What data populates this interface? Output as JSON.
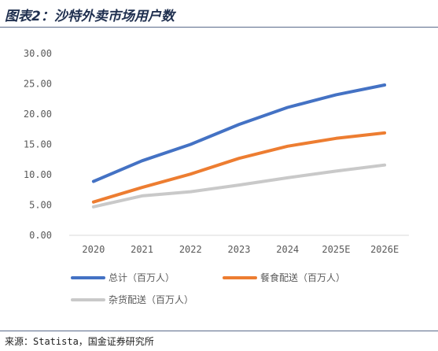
{
  "title": "图表2：沙特外卖市场用户数",
  "source": "来源：Statista，国金证券研究所",
  "chart_data": {
    "type": "line",
    "title": "",
    "xlabel": "",
    "ylabel": "",
    "categories": [
      "2020",
      "2021",
      "2022",
      "2023",
      "2024",
      "2025E",
      "2026E"
    ],
    "ylim": [
      0,
      30
    ],
    "y_ticks": [
      "0.00",
      "5.00",
      "10.00",
      "15.00",
      "20.00",
      "25.00",
      "30.00"
    ],
    "grid": false,
    "legend_position": "bottom",
    "series": [
      {
        "name": "总计（百万人）",
        "color": "#4472c4",
        "values": [
          8.9,
          12.3,
          15.0,
          18.3,
          21.1,
          23.2,
          24.8
        ]
      },
      {
        "name": "餐食配送（百万人）",
        "color": "#ed7d31",
        "values": [
          5.5,
          7.9,
          10.1,
          12.7,
          14.7,
          16.0,
          16.9
        ]
      },
      {
        "name": "杂货配送（百万人）",
        "color": "#c9c9c9",
        "values": [
          4.7,
          6.5,
          7.2,
          8.3,
          9.5,
          10.6,
          11.6
        ]
      }
    ]
  }
}
